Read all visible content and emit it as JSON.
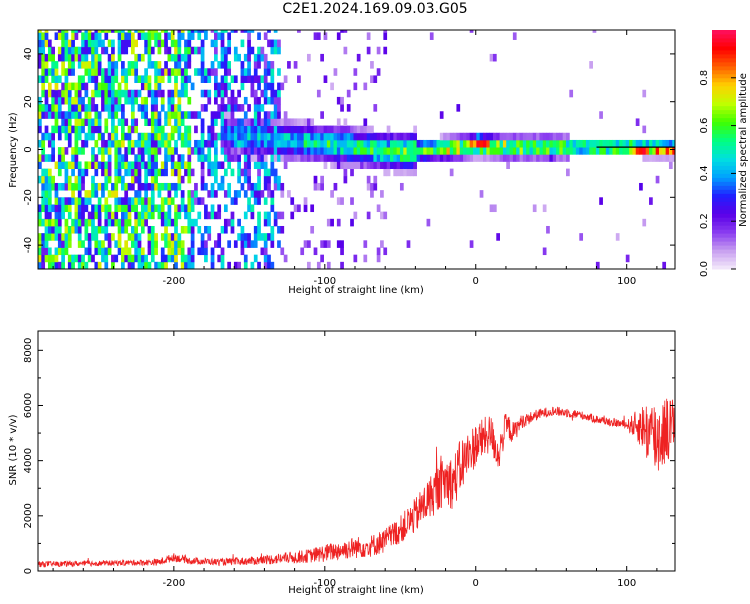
{
  "figure": {
    "title": "C2E1.2024.169.09.03.G05"
  },
  "colors": {
    "background": "#ffffff",
    "snr_line": "#ee2222",
    "trace_line": "#000000",
    "colormap": [
      "#f5ecfb",
      "#c8a0f0",
      "#8a3cf0",
      "#5a00e8",
      "#2020ff",
      "#00a0ff",
      "#00e0e0",
      "#00ff80",
      "#40ff00",
      "#c0ff00",
      "#ffd000",
      "#ff6000",
      "#ff0000",
      "#ff1060"
    ]
  },
  "chart_data": [
    {
      "type": "heatmap",
      "xlabel": "Height of straight line (km)",
      "ylabel": "Frequency (Hz)",
      "xlim": [
        -290,
        132
      ],
      "ylim": [
        -50,
        50
      ],
      "xticks": [
        -200,
        -100,
        0,
        100
      ],
      "xtick_labels": [
        "-200",
        "-100",
        "0",
        "100"
      ],
      "yticks": [
        -40,
        -20,
        0,
        20,
        40
      ],
      "ytick_labels": [
        "-40",
        "-20",
        "0",
        "20",
        "40"
      ],
      "grid": false,
      "colorbar": {
        "label": "Normalized spectral amplitude",
        "range": [
          0,
          1
        ],
        "ticks": [
          0.0,
          0.2,
          0.4,
          0.6,
          0.8
        ],
        "tick_labels": [
          "0.0",
          "0.2",
          "0.4",
          "0.6",
          "0.8"
        ]
      },
      "ridge": {
        "x": [
          -170,
          -150,
          -130,
          -110,
          -90,
          -70,
          -50,
          -30,
          -10,
          0,
          20,
          50,
          80,
          110,
          132
        ],
        "frequency": [
          7,
          5,
          4,
          3,
          2,
          0,
          -1,
          0,
          1,
          2,
          1,
          1,
          1,
          0.5,
          0.5
        ],
        "peak_amplitude": [
          0.35,
          0.4,
          0.45,
          0.5,
          0.55,
          0.55,
          0.6,
          0.65,
          0.75,
          0.85,
          0.7,
          0.65,
          0.7,
          0.9,
          0.85
        ]
      },
      "trace": {
        "x_start": 80,
        "x_end": 132,
        "frequency": 1
      }
    },
    {
      "type": "line",
      "xlabel": "Height of straight line (km)",
      "ylabel": "SNR (10 * v/v)",
      "xlim": [
        -290,
        132
      ],
      "ylim": [
        0,
        8700
      ],
      "xticks": [
        -200,
        -100,
        0,
        100
      ],
      "xtick_labels": [
        "-200",
        "-100",
        "0",
        "100"
      ],
      "yticks": [
        0,
        2000,
        4000,
        6000,
        8000
      ],
      "ytick_labels": [
        "0",
        "2000",
        "4000",
        "6000",
        "8000"
      ],
      "grid": false,
      "series": [
        {
          "x": [
            -290,
            -270,
            -250,
            -230,
            -210,
            -200,
            -190,
            -170,
            -150,
            -130,
            -110,
            -100,
            -90,
            -80,
            -70,
            -60,
            -50,
            -40,
            -30,
            -20,
            -15,
            -10,
            -5,
            0,
            5,
            10,
            15,
            20,
            25,
            30,
            40,
            50,
            60,
            70,
            80,
            90,
            100,
            110,
            115,
            120,
            125,
            132
          ],
          "values": [
            250,
            260,
            280,
            300,
            320,
            500,
            380,
            320,
            360,
            450,
            550,
            650,
            750,
            850,
            900,
            1100,
            1500,
            2000,
            2700,
            3300,
            3200,
            3800,
            4200,
            4600,
            4800,
            5000,
            4200,
            5300,
            5000,
            5400,
            5650,
            5800,
            5750,
            5650,
            5500,
            5400,
            5300,
            5250,
            5000,
            4800,
            5100,
            5300
          ],
          "spread": [
            200,
            200,
            200,
            200,
            250,
            300,
            250,
            250,
            300,
            400,
            500,
            650,
            700,
            800,
            800,
            900,
            1000,
            1300,
            1600,
            1800,
            2000,
            2000,
            1800,
            1600,
            1500,
            1400,
            1300,
            1000,
            800,
            500,
            400,
            350,
            350,
            300,
            300,
            300,
            300,
            1600,
            2600,
            3000,
            2600,
            2000
          ]
        }
      ]
    }
  ]
}
